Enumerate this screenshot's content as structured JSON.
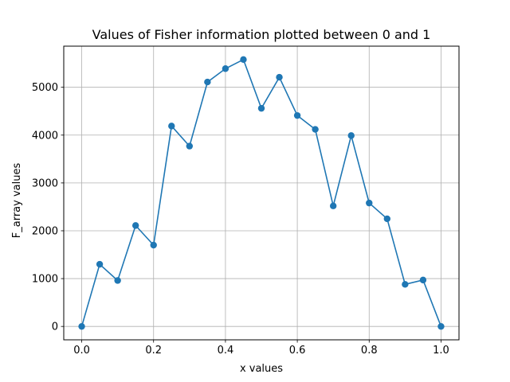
{
  "chart_data": {
    "type": "line",
    "title": "Values of Fisher information plotted between 0 and 1",
    "xlabel": "x values",
    "ylabel": "F_array values",
    "xlim": [
      -0.05,
      1.05
    ],
    "ylim": [
      -280,
      5860
    ],
    "xticks": [
      0.0,
      0.2,
      0.4,
      0.6,
      0.8,
      1.0
    ],
    "xtick_labels": [
      "0.0",
      "0.2",
      "0.4",
      "0.6",
      "0.8",
      "1.0"
    ],
    "yticks": [
      0,
      1000,
      2000,
      3000,
      4000,
      5000
    ],
    "ytick_labels": [
      "0",
      "1000",
      "2000",
      "3000",
      "4000",
      "5000"
    ],
    "grid": true,
    "marker": "circle",
    "color": "#1f77b4",
    "series": [
      {
        "x": [
          0.0,
          0.05,
          0.1,
          0.15,
          0.2,
          0.25,
          0.3,
          0.35,
          0.4,
          0.45,
          0.5,
          0.55,
          0.6,
          0.65,
          0.7,
          0.75,
          0.8,
          0.85,
          0.9,
          0.95,
          1.0
        ],
        "y": [
          0,
          1300,
          960,
          2110,
          1700,
          4190,
          3770,
          5110,
          5390,
          5580,
          4560,
          5210,
          4410,
          4120,
          2520,
          3990,
          2580,
          2250,
          880,
          970,
          0
        ]
      }
    ]
  }
}
